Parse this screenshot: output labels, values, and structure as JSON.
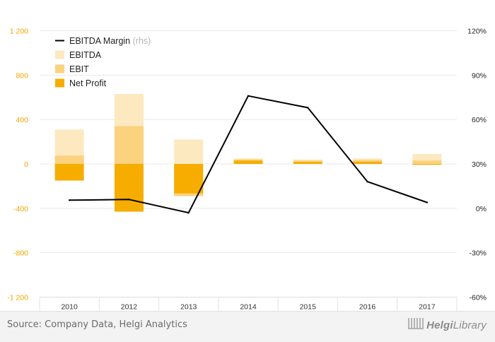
{
  "chart_data": {
    "type": "bar",
    "categories": [
      "2010",
      "2012",
      "2013",
      "2014",
      "2015",
      "2016",
      "2017"
    ],
    "series": [
      {
        "name": "EBITDA",
        "kind": "bar",
        "axis": "left",
        "color": "#fde9c0",
        "values": [
          310,
          630,
          220,
          50,
          40,
          50,
          90
        ]
      },
      {
        "name": "EBIT",
        "kind": "bar",
        "axis": "left",
        "color": "#fbd27e",
        "values": [
          75,
          340,
          -290,
          40,
          30,
          35,
          30
        ]
      },
      {
        "name": "Net Profit",
        "kind": "bar",
        "axis": "left",
        "color": "#f7ac00",
        "values": [
          -150,
          -430,
          -265,
          30,
          18,
          20,
          -8
        ]
      },
      {
        "name": "EBITDA Margin",
        "kind": "line",
        "axis": "right",
        "color": "#000000",
        "values": [
          5.5,
          6.0,
          -3.0,
          76.0,
          68.0,
          18.0,
          4.0
        ]
      }
    ],
    "legend": {
      "placement": "top-left",
      "items": [
        {
          "label": "EBITDA Margin",
          "suffix": "(rhs)",
          "color": "#000000",
          "kind": "line"
        },
        {
          "label": "EBITDA",
          "color": "#fde9c0",
          "kind": "box"
        },
        {
          "label": "EBIT",
          "color": "#fbd27e",
          "kind": "box"
        },
        {
          "label": "Net Profit",
          "color": "#f7ac00",
          "kind": "box"
        }
      ]
    },
    "yleft": {
      "ticks": [
        1200,
        800,
        400,
        0,
        -400,
        -800,
        -1200
      ],
      "labels": [
        "1 200",
        "800",
        "400",
        "0",
        "-400",
        "-800",
        "-1 200"
      ],
      "ylim": [
        -1200,
        1200
      ],
      "label_color": "#f2a600"
    },
    "yright": {
      "ticks": [
        120,
        90,
        60,
        30,
        0,
        -30,
        -60
      ],
      "labels": [
        "120%",
        "90%",
        "60%",
        "30%",
        "0%",
        "-30%",
        "-60%"
      ],
      "ylim": [
        -60,
        120
      ]
    },
    "grid": true
  },
  "footer": {
    "source": "Source: Company Data, Helgi Analytics",
    "brand_a": "Helgi",
    "brand_b": "Library"
  }
}
